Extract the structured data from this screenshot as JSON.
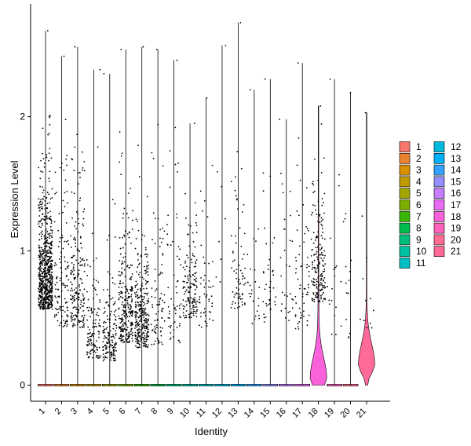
{
  "chart_data": {
    "type": "violin",
    "title": "",
    "xlabel": "Identity",
    "ylabel": "Expression Level",
    "ylim": [
      -0.12,
      2.84
    ],
    "yticks": [
      0,
      1,
      2
    ],
    "categories": [
      "1",
      "2",
      "3",
      "4",
      "5",
      "6",
      "7",
      "8",
      "9",
      "10",
      "11",
      "12",
      "13",
      "14",
      "15",
      "16",
      "17",
      "18",
      "19",
      "20",
      "21"
    ],
    "colors": [
      "#F8766D",
      "#EA8331",
      "#D89000",
      "#C09B00",
      "#A3A500",
      "#7CAE00",
      "#39B600",
      "#00BB4E",
      "#00BF7D",
      "#00C1A3",
      "#00BFC4",
      "#00BAE0",
      "#00B0F6",
      "#35A2FF",
      "#9590FF",
      "#C77CFF",
      "#E76BF3",
      "#FA62DB",
      "#FF62BC",
      "#FF6C91",
      "#FF6A98"
    ],
    "max_values": [
      2.64,
      2.45,
      2.52,
      2.35,
      2.32,
      2.5,
      2.52,
      2.5,
      2.42,
      1.95,
      2.14,
      2.53,
      2.7,
      2.2,
      2.28,
      1.98,
      2.4,
      2.08,
      2.28,
      2.18,
      2.03
    ],
    "nonzero_counts": [
      700,
      120,
      200,
      120,
      150,
      260,
      300,
      80,
      60,
      140,
      50,
      8,
      70,
      25,
      40,
      30,
      60,
      180,
      20,
      15,
      12
    ],
    "nonzero_center": [
      0.7,
      0.6,
      0.6,
      0.3,
      0.27,
      0.45,
      0.4,
      0.45,
      0.45,
      0.6,
      0.55,
      0.8,
      0.7,
      0.6,
      0.6,
      0.6,
      0.55,
      0.75,
      0.5,
      0.5,
      0.5
    ],
    "nonzero_spread": [
      0.45,
      0.55,
      0.6,
      0.35,
      0.3,
      0.45,
      0.4,
      0.5,
      0.45,
      0.35,
      0.4,
      0.6,
      0.45,
      0.5,
      0.55,
      0.5,
      0.55,
      0.45,
      0.5,
      0.5,
      0.5
    ],
    "highlighted_violins": [
      {
        "category": "18",
        "peak_density_value": 0.05,
        "shape_max": 1.27
      },
      {
        "category": "21",
        "peak_density_value": 0.15,
        "shape_max": 1.0
      }
    ],
    "legend": {
      "position": "right",
      "columns": [
        [
          "1",
          "2",
          "3",
          "4",
          "5",
          "6",
          "7",
          "8",
          "9",
          "10",
          "11"
        ],
        [
          "12",
          "13",
          "14",
          "15",
          "16",
          "17",
          "18",
          "19",
          "20",
          "21"
        ]
      ]
    },
    "grid": false
  }
}
